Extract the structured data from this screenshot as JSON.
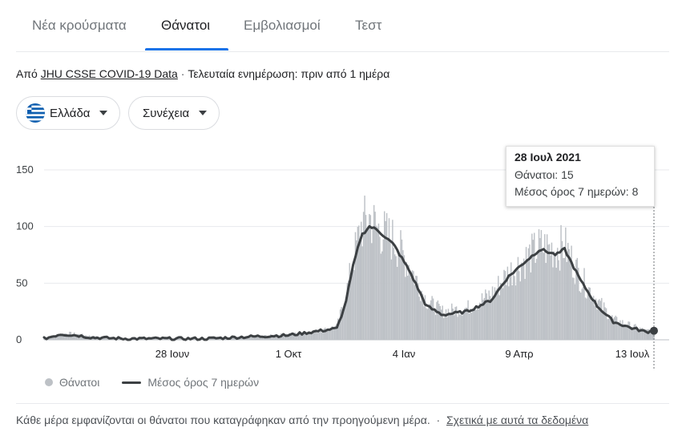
{
  "tabs": [
    {
      "label": "Νέα κρούσματα",
      "active": false
    },
    {
      "label": "Θάνατοι",
      "active": true
    },
    {
      "label": "Εμβολιασμοί",
      "active": false
    },
    {
      "label": "Τεστ",
      "active": false
    }
  ],
  "source": {
    "prefix": "Από",
    "link": "JHU CSSE COVID-19 Data",
    "separator": "·",
    "updated": "Τελευταία ενημέρωση: πριν από 1 ημέρα"
  },
  "filters": {
    "region": "Ελλάδα",
    "region_icon": "greece-flag-icon",
    "mode": "Συνέχεια"
  },
  "tooltip": {
    "date": "28 Ιουλ 2021",
    "deaths_label": "Θάνατοι: 15",
    "avg_label": "Μέσος όρος 7 ημερών: 8"
  },
  "legend": {
    "deaths": "Θάνατοι",
    "avg": "Μέσος όρος 7 ημερών"
  },
  "footer": {
    "note": "Κάθε μέρα εμφανίζονται οι θάνατοι που καταγράφηκαν από την προηγούμενη μέρα.",
    "separator": "·",
    "link": "Σχετικά με αυτά τα δεδομένα"
  },
  "colors": {
    "bars": "#bdc1c6",
    "avg_line": "#3c4043",
    "active_tab": "#1a73e8"
  },
  "chart_data": {
    "type": "bar",
    "y_ticks": [
      "0",
      "50",
      "100",
      "150"
    ],
    "ylim": [
      0,
      150
    ],
    "x_ticks": [
      "28 Ιουν",
      "1 Οκτ",
      "4 Ιαν",
      "9 Απρ",
      "13 Ιουλ"
    ],
    "series": [
      {
        "name": "Θάνατοι",
        "kind": "bar",
        "keypoints": [
          {
            "week": 0,
            "value": 2
          },
          {
            "week": 3,
            "value": 6
          },
          {
            "week": 6,
            "value": 3
          },
          {
            "week": 10,
            "value": 1
          },
          {
            "week": 20,
            "value": 1
          },
          {
            "week": 26,
            "value": 3
          },
          {
            "week": 30,
            "value": 5
          },
          {
            "week": 34,
            "value": 8
          },
          {
            "week": 36,
            "value": 12
          },
          {
            "week": 37,
            "value": 35
          },
          {
            "week": 38,
            "value": 70
          },
          {
            "week": 39,
            "value": 100
          },
          {
            "week": 40,
            "value": 108
          },
          {
            "week": 41,
            "value": 98
          },
          {
            "week": 43,
            "value": 88
          },
          {
            "week": 45,
            "value": 65
          },
          {
            "week": 47,
            "value": 35
          },
          {
            "week": 49,
            "value": 25
          },
          {
            "week": 52,
            "value": 28
          },
          {
            "week": 55,
            "value": 40
          },
          {
            "week": 57,
            "value": 58
          },
          {
            "week": 59,
            "value": 70
          },
          {
            "week": 61,
            "value": 82
          },
          {
            "week": 63,
            "value": 80
          },
          {
            "week": 64,
            "value": 83
          },
          {
            "week": 66,
            "value": 55
          },
          {
            "week": 68,
            "value": 35
          },
          {
            "week": 70,
            "value": 18
          },
          {
            "week": 72,
            "value": 13
          },
          {
            "week": 74,
            "value": 8
          },
          {
            "week": 75,
            "value": 8
          }
        ]
      },
      {
        "name": "Μέσος όρος 7 ημερών",
        "kind": "line",
        "keypoints": [
          {
            "week": 0,
            "value": 1
          },
          {
            "week": 2,
            "value": 5
          },
          {
            "week": 4,
            "value": 4
          },
          {
            "week": 6,
            "value": 2
          },
          {
            "week": 10,
            "value": 1
          },
          {
            "week": 20,
            "value": 1
          },
          {
            "week": 26,
            "value": 3
          },
          {
            "week": 30,
            "value": 4
          },
          {
            "week": 34,
            "value": 8
          },
          {
            "week": 36,
            "value": 10
          },
          {
            "week": 37,
            "value": 30
          },
          {
            "week": 38,
            "value": 65
          },
          {
            "week": 39,
            "value": 92
          },
          {
            "week": 40,
            "value": 100
          },
          {
            "week": 41,
            "value": 97
          },
          {
            "week": 43,
            "value": 84
          },
          {
            "week": 45,
            "value": 60
          },
          {
            "week": 47,
            "value": 30
          },
          {
            "week": 49,
            "value": 22
          },
          {
            "week": 52,
            "value": 25
          },
          {
            "week": 55,
            "value": 35
          },
          {
            "week": 57,
            "value": 55
          },
          {
            "week": 59,
            "value": 68
          },
          {
            "week": 61,
            "value": 80
          },
          {
            "week": 63,
            "value": 75
          },
          {
            "week": 64,
            "value": 80
          },
          {
            "week": 66,
            "value": 52
          },
          {
            "week": 68,
            "value": 30
          },
          {
            "week": 70,
            "value": 16
          },
          {
            "week": 72,
            "value": 11
          },
          {
            "week": 74,
            "value": 7
          },
          {
            "week": 75,
            "value": 8
          }
        ]
      }
    ],
    "highlight": {
      "date": "28 Ιουλ 2021",
      "deaths": 15,
      "avg": 8
    },
    "grid": true,
    "legend_position": "bottom-left"
  }
}
